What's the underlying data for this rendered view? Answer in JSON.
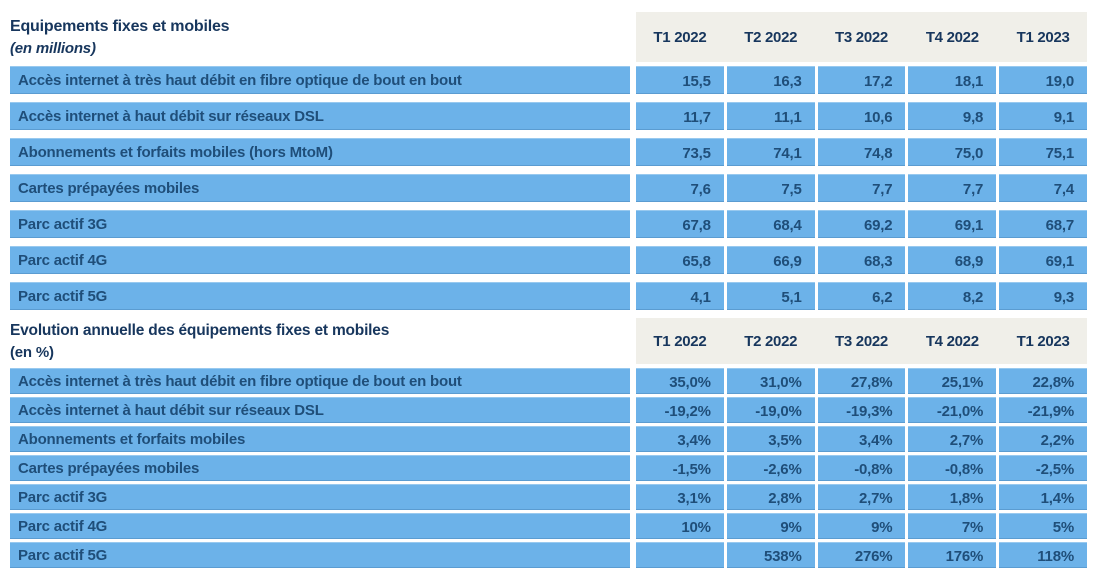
{
  "colors": {
    "row_blue": "#6CB2E9",
    "header_band_beige": "#F0EFE9",
    "title_navy": "#17365D",
    "cell_text_navy": "#1F4E79",
    "background": "#FFFFFF"
  },
  "columns": [
    "T1 2022",
    "T2 2022",
    "T3 2022",
    "T4 2022",
    "T1 2023"
  ],
  "sections": [
    {
      "title": "Equipements fixes et mobiles",
      "subtitle": "(en millions)",
      "rows": [
        {
          "label": "Accès internet à très haut débit en fibre optique de bout en bout",
          "values": [
            "15,5",
            "16,3",
            "17,2",
            "18,1",
            "19,0"
          ]
        },
        {
          "label": "Accès internet à haut débit sur réseaux DSL",
          "values": [
            "11,7",
            "11,1",
            "10,6",
            "9,8",
            "9,1"
          ]
        },
        {
          "label": "Abonnements et forfaits mobiles (hors MtoM)",
          "values": [
            "73,5",
            "74,1",
            "74,8",
            "75,0",
            "75,1"
          ]
        },
        {
          "label": "Cartes prépayées mobiles",
          "values": [
            "7,6",
            "7,5",
            "7,7",
            "7,7",
            "7,4"
          ]
        },
        {
          "label": "Parc actif 3G",
          "values": [
            "67,8",
            "68,4",
            "69,2",
            "69,1",
            "68,7"
          ]
        },
        {
          "label": "Parc actif 4G",
          "values": [
            "65,8",
            "66,9",
            "68,3",
            "68,9",
            "69,1"
          ]
        },
        {
          "label": "Parc actif 5G",
          "values": [
            "4,1",
            "5,1",
            "6,2",
            "8,2",
            "9,3"
          ]
        }
      ]
    },
    {
      "title": "Evolution annuelle des équipements fixes et mobiles",
      "subtitle": "(en %)",
      "rows": [
        {
          "label": "Accès internet à très haut débit en fibre optique de bout en bout",
          "values": [
            "35,0%",
            "31,0%",
            "27,8%",
            "25,1%",
            "22,8%"
          ]
        },
        {
          "label": "Accès internet à haut débit sur réseaux DSL",
          "values": [
            "-19,2%",
            "-19,0%",
            "-19,3%",
            "-21,0%",
            "-21,9%"
          ]
        },
        {
          "label": "Abonnements et forfaits mobiles",
          "values": [
            "3,4%",
            "3,5%",
            "3,4%",
            "2,7%",
            "2,2%"
          ]
        },
        {
          "label": "Cartes prépayées mobiles",
          "values": [
            "-1,5%",
            "-2,6%",
            "-0,8%",
            "-0,8%",
            "-2,5%"
          ]
        },
        {
          "label": "Parc actif 3G",
          "values": [
            "3,1%",
            "2,8%",
            "2,7%",
            "1,8%",
            "1,4%"
          ]
        },
        {
          "label": "Parc actif 4G",
          "values": [
            "10%",
            "9%",
            "9%",
            "7%",
            "5%"
          ]
        },
        {
          "label": "Parc actif 5G",
          "values": [
            "",
            "538%",
            "276%",
            "176%",
            "118%"
          ]
        }
      ]
    }
  ]
}
